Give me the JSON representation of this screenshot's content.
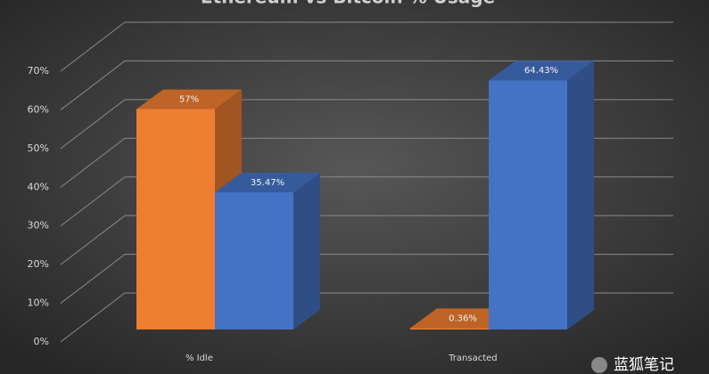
{
  "chart_data": {
    "type": "bar3d",
    "title": "Ethereum vs Bitcoin % Usage",
    "categories": [
      "% Idle",
      "Transacted"
    ],
    "series": [
      {
        "color": "#ed7d31",
        "values": [
          57,
          0.36
        ],
        "value_labels": [
          "57%",
          "0.36%"
        ]
      },
      {
        "color": "#4472c4",
        "values": [
          35.47,
          64.43
        ],
        "value_labels": [
          "35.47%",
          "64.43%"
        ]
      }
    ],
    "ylim": [
      0,
      70
    ],
    "yticks": [
      {
        "value": 0,
        "label": "0%"
      },
      {
        "value": 10,
        "label": "10%"
      },
      {
        "value": 20,
        "label": "20%"
      },
      {
        "value": 30,
        "label": "30%"
      },
      {
        "value": 40,
        "label": "40%"
      },
      {
        "value": 50,
        "label": "50%"
      },
      {
        "value": 60,
        "label": "60%"
      },
      {
        "value": 70,
        "label": "70%"
      }
    ],
    "grid": true,
    "annotation": "蓝狐笔记"
  }
}
